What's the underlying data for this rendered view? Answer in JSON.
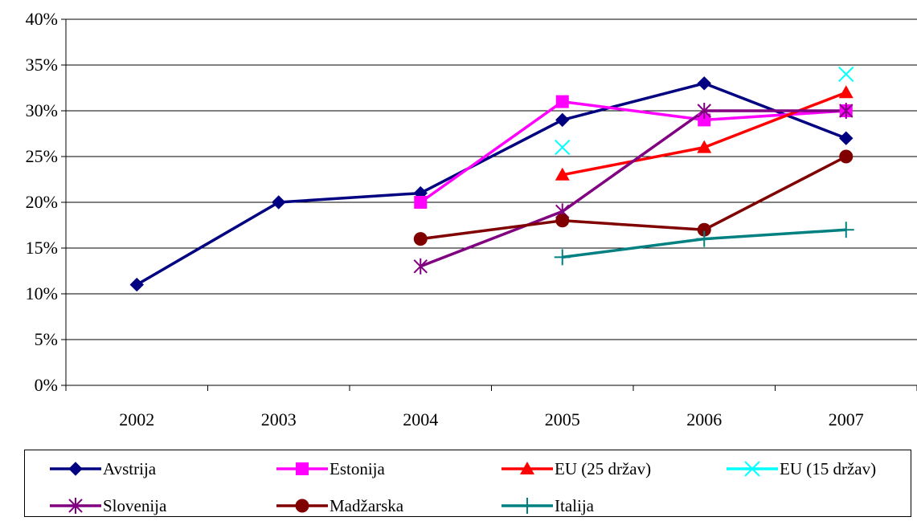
{
  "chart_data": {
    "type": "line",
    "title": "",
    "xlabel": "",
    "ylabel": "",
    "categories": [
      "2002",
      "2003",
      "2004",
      "2005",
      "2006",
      "2007"
    ],
    "y_ticks": [
      "0%",
      "5%",
      "10%",
      "15%",
      "20%",
      "25%",
      "30%",
      "35%",
      "40%"
    ],
    "ylim": [
      0,
      40
    ],
    "y_unit": "%",
    "grid": "horizontal",
    "legend_position": "bottom",
    "series": [
      {
        "name": "Avstrija",
        "color": "#000080",
        "marker": "diamond",
        "values": [
          11,
          20,
          21,
          29,
          33,
          27
        ]
      },
      {
        "name": "Estonija",
        "color": "#FF00FF",
        "marker": "square",
        "values": [
          null,
          null,
          20,
          31,
          29,
          30
        ]
      },
      {
        "name": "EU (25 držav)",
        "color": "#FF0000",
        "marker": "triangle",
        "values": [
          null,
          null,
          null,
          23,
          26,
          32
        ]
      },
      {
        "name": "EU (15 držav)",
        "color": "#00FFFF",
        "marker": "x",
        "values": [
          null,
          null,
          null,
          26,
          null,
          34
        ]
      },
      {
        "name": "Slovenija",
        "color": "#800080",
        "marker": "star",
        "values": [
          null,
          null,
          13,
          19,
          30,
          30
        ]
      },
      {
        "name": "Madžarska",
        "color": "#800000",
        "marker": "circle",
        "values": [
          null,
          null,
          16,
          18,
          17,
          25
        ]
      },
      {
        "name": "Italija",
        "color": "#008080",
        "marker": "plus",
        "values": [
          null,
          null,
          null,
          14,
          16,
          17
        ]
      }
    ]
  }
}
